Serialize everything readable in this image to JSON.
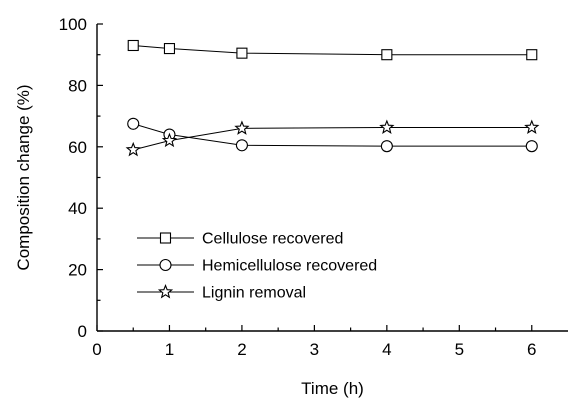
{
  "chart_data": {
    "type": "line",
    "title": "",
    "xlabel": "Time (h)",
    "ylabel": "Composition change (%)",
    "xlim": [
      0,
      6.5
    ],
    "ylim": [
      0,
      100
    ],
    "xticks": [
      0,
      1,
      2,
      3,
      4,
      5,
      6
    ],
    "yticks": [
      0,
      20,
      40,
      60,
      80,
      100
    ],
    "x": [
      0.5,
      1,
      2,
      4,
      6
    ],
    "grid": false,
    "legend_position": "lower-left",
    "series": [
      {
        "name": "Cellulose recovered",
        "marker": "square",
        "values": [
          93.0,
          92.0,
          90.5,
          90.0,
          90.0
        ]
      },
      {
        "name": "Hemicellulose recovered",
        "marker": "circle",
        "values": [
          67.5,
          64.0,
          60.5,
          60.2,
          60.2
        ]
      },
      {
        "name": "Lignin removal",
        "marker": "star",
        "values": [
          59.0,
          62.0,
          66.0,
          66.3,
          66.3
        ]
      }
    ]
  }
}
